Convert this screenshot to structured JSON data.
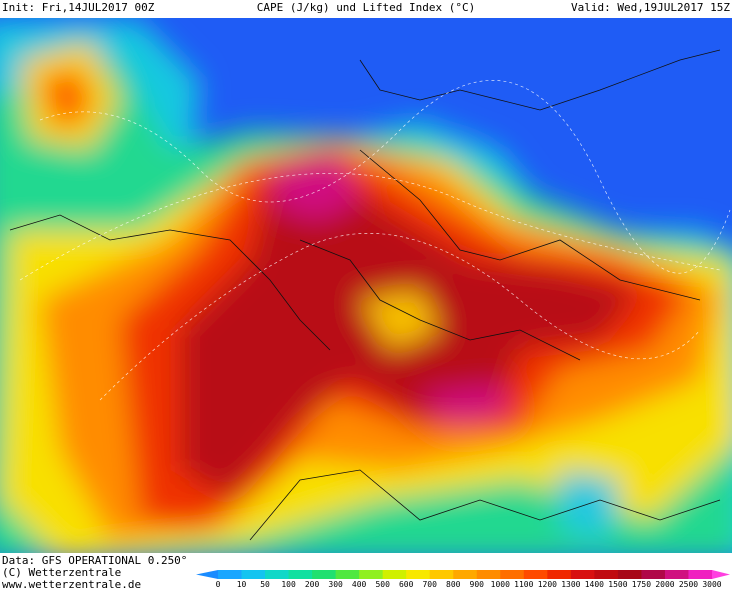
{
  "header": {
    "init": "Init: Fri,14JUL2017 00Z",
    "title": "CAPE (J/kg) und Lifted Index (°C)",
    "valid": "Valid: Wed,19JUL2017 15Z"
  },
  "footer": {
    "data": "Data: GFS OPERATIONAL 0.250°",
    "copyright": "(C) Wetterzentrale",
    "url": "www.wetterzentrale.de"
  },
  "legend": {
    "levels": [
      0,
      10,
      50,
      100,
      200,
      300,
      400,
      500,
      600,
      700,
      800,
      900,
      1000,
      1100,
      1200,
      1300,
      1400,
      1500,
      1750,
      2000,
      2500,
      3000
    ],
    "colors": [
      "#1a8cff",
      "#1aa6ff",
      "#14c4f0",
      "#10d8c8",
      "#10e0a0",
      "#20e070",
      "#50e840",
      "#90f020",
      "#d0f000",
      "#f8e800",
      "#ffc800",
      "#ffa800",
      "#ff8c00",
      "#ff6e00",
      "#ff4a00",
      "#f02800",
      "#d81010",
      "#c00a10",
      "#a80818",
      "#b00848",
      "#d01080",
      "#f020c0",
      "#ff40e0"
    ]
  }
}
